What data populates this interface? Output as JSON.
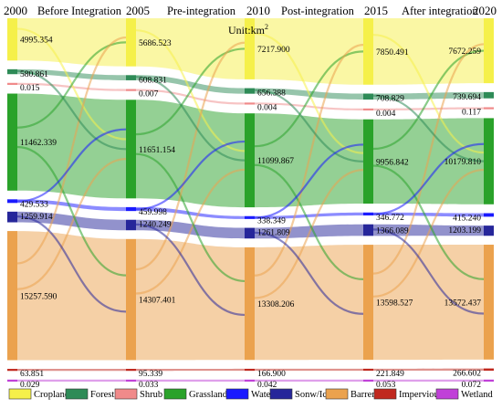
{
  "chart_data": {
    "type": "sankey",
    "unit": "Unit:km",
    "unit_superscript": "2",
    "years": [
      "2000",
      "2005",
      "2010",
      "2015",
      "2020"
    ],
    "periods": [
      "Before Integration",
      "Pre-integration",
      "Post-integration",
      "After integration"
    ],
    "classes": [
      {
        "name": "Cropland",
        "color": "#f5f04a"
      },
      {
        "name": "Forest",
        "color": "#2e8b57"
      },
      {
        "name": "Shrub",
        "color": "#f08a8a"
      },
      {
        "name": "Grassland",
        "color": "#2aa22a"
      },
      {
        "name": "Water",
        "color": "#1a1aff"
      },
      {
        "name": "Sonw/Ice",
        "color": "#26269a"
      },
      {
        "name": "Barren",
        "color": "#eba24e"
      },
      {
        "name": "Impervious",
        "color": "#c0281e"
      },
      {
        "name": "Wetland",
        "color": "#c040d8"
      }
    ],
    "values": [
      [
        "4995.354",
        "580.861",
        "0.015",
        "11462.339",
        "429.533",
        "1259.914",
        "15257.590",
        "63.851",
        "0.029"
      ],
      [
        "5686.523",
        "608.831",
        "0.007",
        "11651.154",
        "459.998",
        "1240.249",
        "14307.401",
        "95.339",
        "0.033"
      ],
      [
        "7217.900",
        "656.388",
        "0.004",
        "11099.867",
        "338.349",
        "1261.809",
        "13308.206",
        "166.900",
        "0.042"
      ],
      [
        "7850.491",
        "708.829",
        "0.004",
        "9956.842",
        "346.772",
        "1366.089",
        "13598.527",
        "221.849",
        "0.053"
      ],
      [
        "7672.259",
        "739.694",
        "0.117",
        "10179.810",
        "415.240",
        "1203.199",
        "13572.437",
        "266.602",
        "0.072"
      ]
    ]
  }
}
